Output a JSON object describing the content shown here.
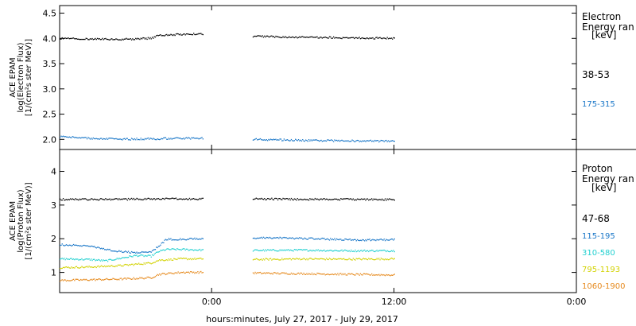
{
  "chart_data": {
    "type": "scatter",
    "xlabel": "hours:minutes, July 27, 2017 - July 29, 2017",
    "x_tick_labels": [
      "0:00",
      "12:00",
      "0:00"
    ],
    "x_range_hours": [
      -10,
      24
    ],
    "x_ticks_hours": [
      0,
      12,
      24
    ],
    "data_gap_hours": [
      -0.5,
      2.7
    ],
    "data_end_hours": 12,
    "panels": [
      {
        "name": "electron",
        "ylabel_lines": [
          "ACE EPAM",
          "log(Electron Flux)",
          "[1/(cm²s ster MeV)]"
        ],
        "ylim": [
          1.8,
          4.65
        ],
        "yticks": [
          2.0,
          2.5,
          3.0,
          3.5,
          4.0,
          4.5
        ],
        "ytick_labels": [
          "2.0",
          "2.5",
          "3.0",
          "3.5",
          "4.0",
          "4.5"
        ],
        "legend_title_lines": [
          "Electron",
          "Energy ran"
        ],
        "legend_unit": "[keV]",
        "series": [
          {
            "name": "38-53",
            "color": "#000000",
            "before_gap": [
              [
                -10,
                4.0
              ],
              [
                -6,
                3.98
              ],
              [
                -4,
                4.0
              ],
              [
                -3.5,
                4.06
              ],
              [
                -2,
                4.08
              ],
              [
                -0.6,
                4.09
              ]
            ],
            "after_gap": [
              [
                2.7,
                4.04
              ],
              [
                6,
                4.02
              ],
              [
                9,
                4.01
              ],
              [
                12,
                4.0
              ]
            ]
          },
          {
            "name": "175-315",
            "color": "#1a77c8",
            "before_gap": [
              [
                -10,
                2.05
              ],
              [
                -8,
                2.02
              ],
              [
                -6,
                2.0
              ],
              [
                -4,
                2.01
              ],
              [
                -2,
                2.02
              ],
              [
                -0.6,
                2.02
              ]
            ],
            "after_gap": [
              [
                2.7,
                2.0
              ],
              [
                6,
                1.98
              ],
              [
                9,
                1.97
              ],
              [
                12,
                1.96
              ]
            ]
          }
        ]
      },
      {
        "name": "proton",
        "ylabel_lines": [
          "ACE EPAM",
          "log(Proton Flux)",
          "[1/(cm²s ster MeV)]"
        ],
        "ylim": [
          0.4,
          4.65
        ],
        "yticks": [
          1,
          2,
          3,
          4
        ],
        "ytick_labels": [
          "1",
          "2",
          "3",
          "4"
        ],
        "legend_title_lines": [
          "Proton",
          "Energy ran"
        ],
        "legend_unit": "[keV]",
        "series": [
          {
            "name": "47-68",
            "color": "#000000",
            "before_gap": [
              [
                -10,
                3.17
              ],
              [
                -6,
                3.17
              ],
              [
                -3,
                3.18
              ],
              [
                -0.6,
                3.18
              ]
            ],
            "after_gap": [
              [
                2.7,
                3.18
              ],
              [
                6,
                3.17
              ],
              [
                9,
                3.17
              ],
              [
                12,
                3.16
              ]
            ]
          },
          {
            "name": "115-195",
            "color": "#1a77c8",
            "before_gap": [
              [
                -10,
                1.82
              ],
              [
                -8,
                1.78
              ],
              [
                -7,
                1.68
              ],
              [
                -6,
                1.62
              ],
              [
                -5,
                1.58
              ],
              [
                -4,
                1.62
              ],
              [
                -3.5,
                1.78
              ],
              [
                -3,
                1.98
              ],
              [
                -2,
                1.98
              ],
              [
                -0.6,
                2.0
              ]
            ],
            "after_gap": [
              [
                2.7,
                2.02
              ],
              [
                5,
                2.02
              ],
              [
                8,
                1.98
              ],
              [
                10,
                1.96
              ],
              [
                12,
                1.97
              ]
            ]
          },
          {
            "name": "310-580",
            "color": "#22d0d0",
            "before_gap": [
              [
                -10,
                1.4
              ],
              [
                -8,
                1.38
              ],
              [
                -7,
                1.34
              ],
              [
                -6,
                1.42
              ],
              [
                -5,
                1.5
              ],
              [
                -4,
                1.48
              ],
              [
                -3.5,
                1.62
              ],
              [
                -3,
                1.68
              ],
              [
                -2,
                1.68
              ],
              [
                -0.6,
                1.66
              ]
            ],
            "after_gap": [
              [
                2.7,
                1.65
              ],
              [
                6,
                1.66
              ],
              [
                9,
                1.64
              ],
              [
                12,
                1.64
              ]
            ]
          },
          {
            "name": "795-1193",
            "color": "#d2d200",
            "before_gap": [
              [
                -10,
                1.14
              ],
              [
                -8,
                1.16
              ],
              [
                -6,
                1.2
              ],
              [
                -4,
                1.28
              ],
              [
                -3.5,
                1.36
              ],
              [
                -2,
                1.4
              ],
              [
                -0.6,
                1.4
              ]
            ],
            "after_gap": [
              [
                2.7,
                1.38
              ],
              [
                6,
                1.4
              ],
              [
                9,
                1.39
              ],
              [
                12,
                1.4
              ]
            ]
          },
          {
            "name": "1060-1900",
            "color": "#e68a1e",
            "before_gap": [
              [
                -10,
                0.76
              ],
              [
                -8,
                0.78
              ],
              [
                -6,
                0.8
              ],
              [
                -4,
                0.84
              ],
              [
                -3.5,
                0.94
              ],
              [
                -2,
                1.0
              ],
              [
                -0.6,
                1.0
              ]
            ],
            "after_gap": [
              [
                2.7,
                0.98
              ],
              [
                6,
                0.96
              ],
              [
                9,
                0.94
              ],
              [
                12,
                0.92
              ]
            ]
          }
        ]
      }
    ]
  }
}
